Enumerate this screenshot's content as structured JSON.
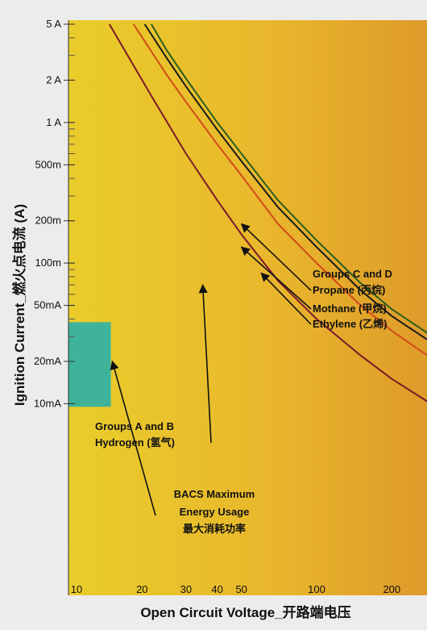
{
  "chart_data": {
    "type": "line",
    "xlabel": "Open Circuit Voltage_开路端电压",
    "ylabel": "Ignition Current_燃火点电流 (A)",
    "x_scale": "log",
    "y_scale": "log",
    "xlim": [
      9.5,
      300
    ],
    "ylim": [
      0.0095,
      5
    ],
    "x_ticks": [
      {
        "value": 10,
        "label": "10"
      },
      {
        "value": 20,
        "label": "20"
      },
      {
        "value": 30,
        "label": "30"
      },
      {
        "value": 40,
        "label": "40"
      },
      {
        "value": 50,
        "label": "50"
      },
      {
        "value": 100,
        "label": "100"
      },
      {
        "value": 200,
        "label": "200"
      }
    ],
    "y_ticks": [
      {
        "value": 5,
        "label": "5 A"
      },
      {
        "value": 2,
        "label": "2 A"
      },
      {
        "value": 1,
        "label": "1 A"
      },
      {
        "value": 0.5,
        "label": "500m"
      },
      {
        "value": 0.2,
        "label": "200m"
      },
      {
        "value": 0.1,
        "label": "100m"
      },
      {
        "value": 0.05,
        "label": "50mA"
      },
      {
        "value": 0.02,
        "label": "20mA"
      },
      {
        "value": 0.01,
        "label": "10mA"
      }
    ],
    "series": [
      {
        "name": "Groups A and B",
        "color": "#7a1a2a",
        "x": [
          14.8,
          22,
          30,
          40,
          50,
          70,
          100,
          150,
          200,
          300
        ],
        "y": [
          5,
          1.5,
          0.6,
          0.28,
          0.16,
          0.075,
          0.04,
          0.022,
          0.015,
          0.0095
        ]
      },
      {
        "name": "Ethylene",
        "color": "#d24a1a",
        "x": [
          18.5,
          25,
          30,
          40,
          50,
          70,
          100,
          150,
          200,
          300
        ],
        "y": [
          5,
          2.2,
          1.4,
          0.7,
          0.42,
          0.19,
          0.1,
          0.05,
          0.033,
          0.02
        ]
      },
      {
        "name": "Mothane",
        "color": "#1a1a1a",
        "x": [
          20.5,
          25,
          30,
          40,
          50,
          70,
          100,
          150,
          200,
          300
        ],
        "y": [
          5,
          2.9,
          1.8,
          0.89,
          0.53,
          0.25,
          0.13,
          0.064,
          0.042,
          0.026
        ]
      },
      {
        "name": "Propane",
        "color": "#2e5d1c",
        "x": [
          21.8,
          25,
          30,
          40,
          50,
          70,
          100,
          150,
          200,
          300
        ],
        "y": [
          5,
          3.3,
          2.05,
          1.0,
          0.6,
          0.28,
          0.145,
          0.072,
          0.047,
          0.029
        ]
      }
    ],
    "regions": [
      {
        "name": "BACS Maximum Energy Usage 最大消耗功率",
        "x": [
          10,
          15
        ],
        "y": [
          0.0095,
          0.038
        ],
        "color": "#3fb39a"
      }
    ],
    "annotations": [
      {
        "lines": [
          "Groups C and D"
        ],
        "anchor": "label"
      },
      {
        "lines": [
          "Propane (丙烷)"
        ],
        "arrow_to": [
          50,
          0.19
        ]
      },
      {
        "lines": [
          "Mothane (甲烷)"
        ],
        "arrow_to": [
          50,
          0.13
        ]
      },
      {
        "lines": [
          "Ethylene (乙烯)"
        ],
        "arrow_to": [
          60,
          0.085
        ]
      },
      {
        "lines": [
          "Groups A and B",
          "Hydrogen (氢气)"
        ],
        "arrow_to": [
          35,
          0.07
        ]
      },
      {
        "lines": [
          "BACS Maximum",
          "Energy Usage",
          "最大消耗功率"
        ],
        "arrow_to": [
          15.2,
          0.02
        ]
      }
    ]
  }
}
